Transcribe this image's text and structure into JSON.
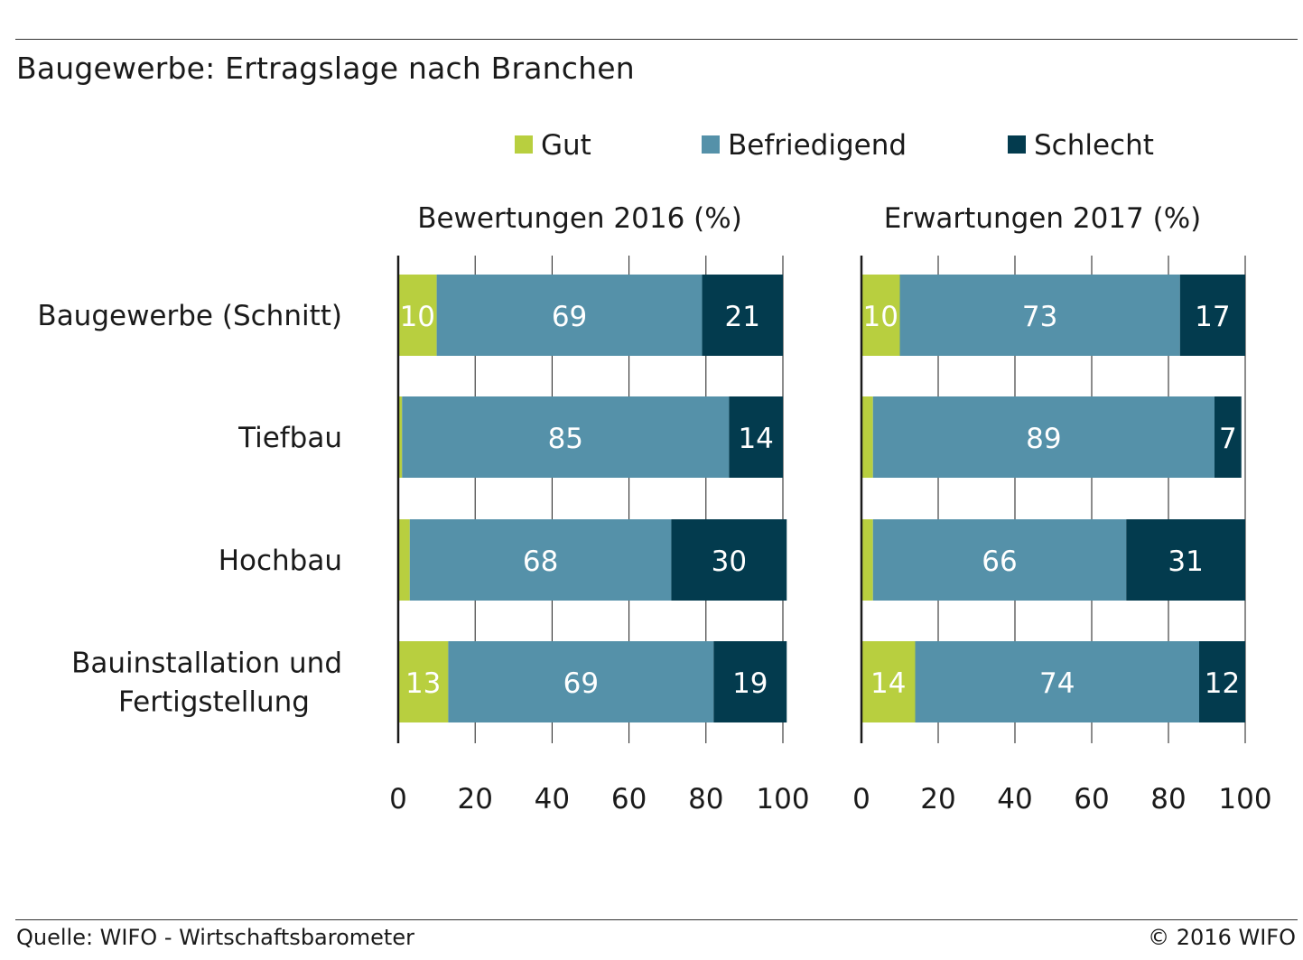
{
  "title": "Baugewerbe: Ertragslage nach Branchen",
  "source": "Quelle: WIFO - Wirtschaftsbarometer",
  "copyright": "© 2016 WIFO",
  "colors": {
    "Gut": "#b8cf3f",
    "Befriedigend": "#5591a9",
    "Schlecht": "#033b4e"
  },
  "chart_data": [
    {
      "type": "bar",
      "orientation": "horizontal",
      "stacked": true,
      "title": "Bewertungen 2016 (%)",
      "categories": [
        "Baugewerbe (Schnitt)",
        "Tiefbau",
        "Hochbau",
        "Bauinstallation und Fertigstellung"
      ],
      "series": [
        {
          "name": "Gut",
          "values": [
            10,
            1,
            3,
            13
          ],
          "labels": [
            "10",
            "",
            "",
            "13"
          ]
        },
        {
          "name": "Befriedigend",
          "values": [
            69,
            85,
            68,
            69
          ],
          "labels": [
            "69",
            "85",
            "68",
            "69"
          ]
        },
        {
          "name": "Schlecht",
          "values": [
            21,
            14,
            30,
            19
          ],
          "labels": [
            "21",
            "14",
            "30",
            "19"
          ]
        }
      ],
      "xlim": [
        0,
        100
      ],
      "xticks": [
        "0",
        "20",
        "40",
        "60",
        "80",
        "100"
      ],
      "grid": "vertical",
      "legend": "top"
    },
    {
      "type": "bar",
      "orientation": "horizontal",
      "stacked": true,
      "title": "Erwartungen 2017 (%)",
      "categories": [
        "Baugewerbe (Schnitt)",
        "Tiefbau",
        "Hochbau",
        "Bauinstallation und Fertigstellung"
      ],
      "series": [
        {
          "name": "Gut",
          "values": [
            10,
            3,
            3,
            14
          ],
          "labels": [
            "10",
            "",
            "",
            "14"
          ]
        },
        {
          "name": "Befriedigend",
          "values": [
            73,
            89,
            66,
            74
          ],
          "labels": [
            "73",
            "89",
            "66",
            "74"
          ]
        },
        {
          "name": "Schlecht",
          "values": [
            17,
            7,
            31,
            12
          ],
          "labels": [
            "17",
            "7",
            "31",
            "12"
          ]
        }
      ],
      "xlim": [
        0,
        100
      ],
      "xticks": [
        "0",
        "20",
        "40",
        "60",
        "80",
        "100"
      ],
      "grid": "vertical",
      "legend": "top"
    }
  ],
  "category_lines": [
    [
      "Baugewerbe (Schnitt)"
    ],
    [
      "Tiefbau"
    ],
    [
      "Hochbau"
    ],
    [
      "Bauinstallation und",
      "Fertigstellung"
    ]
  ]
}
